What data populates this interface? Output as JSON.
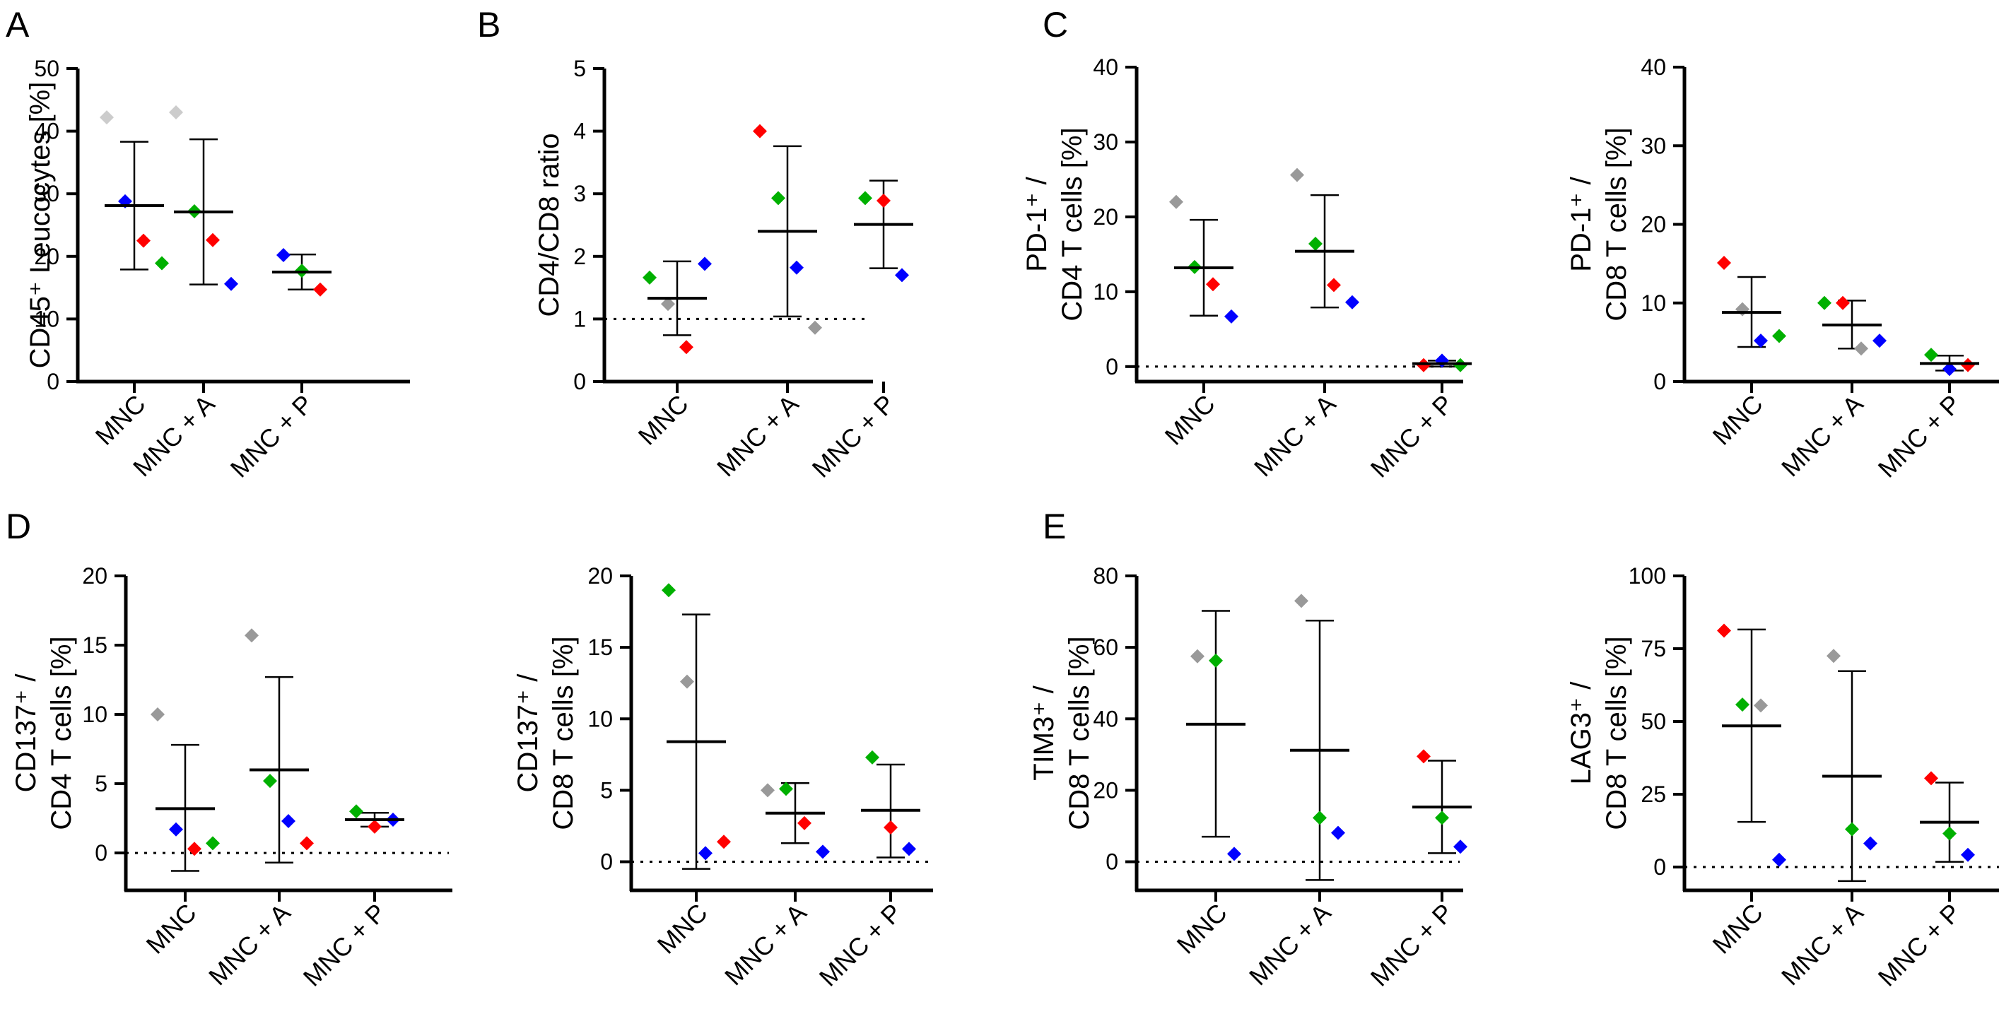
{
  "figure": {
    "panel_letters": [
      "A",
      "B",
      "C",
      "D",
      "E"
    ]
  },
  "colors": {
    "axis": "#000000",
    "gray": "#999999",
    "light_gray": "#cccccc",
    "blue": "#0000ff",
    "red": "#ff0000",
    "green": "#00b000"
  },
  "chart_data": [
    {
      "type": "scatter",
      "panel": "A",
      "ylabel": [
        "CD45⁺ Leucocytes [%]"
      ],
      "categories": [
        "MNC",
        "MNC + A",
        "MNC + P"
      ],
      "ylim": [
        0,
        50
      ],
      "yticks": [
        0,
        10,
        20,
        30,
        40,
        50
      ],
      "reference_line": null,
      "grid": false,
      "groups": [
        {
          "mean": 28.1,
          "sd_upper": 38.3,
          "sd_lower": 17.9,
          "points": [
            {
              "color": "light_gray",
              "value": 42.2
            },
            {
              "color": "blue",
              "value": 28.8
            },
            {
              "color": "red",
              "value": 22.5
            },
            {
              "color": "green",
              "value": 18.9
            }
          ]
        },
        {
          "mean": 27.1,
          "sd_upper": 38.7,
          "sd_lower": 15.5,
          "points": [
            {
              "color": "light_gray",
              "value": 43
            },
            {
              "color": "green",
              "value": 27.2
            },
            {
              "color": "red",
              "value": 22.6
            },
            {
              "color": "blue",
              "value": 15.6
            }
          ]
        },
        {
          "mean": 17.5,
          "sd_upper": 20.3,
          "sd_lower": 14.7,
          "points": [
            {
              "color": "blue",
              "value": 20.2
            },
            {
              "color": "green",
              "value": 17.7
            },
            {
              "color": "red",
              "value": 14.7
            }
          ]
        }
      ]
    },
    {
      "type": "scatter",
      "panel": "B",
      "ylabel": [
        "CD4/CD8 ratio"
      ],
      "categories": [
        "MNC",
        "MNC + A",
        "MNC + P"
      ],
      "ylim": [
        0,
        5
      ],
      "yticks": [
        0,
        1,
        2,
        3,
        4,
        5
      ],
      "reference_line": 1,
      "grid": false,
      "groups": [
        {
          "mean": 1.33,
          "sd_upper": 1.92,
          "sd_lower": 0.74,
          "points": [
            {
              "color": "green",
              "value": 1.66
            },
            {
              "color": "gray",
              "value": 1.24
            },
            {
              "color": "red",
              "value": 0.55
            },
            {
              "color": "blue",
              "value": 1.88
            }
          ]
        },
        {
          "mean": 2.4,
          "sd_upper": 3.76,
          "sd_lower": 1.04,
          "points": [
            {
              "color": "red",
              "value": 4.0
            },
            {
              "color": "green",
              "value": 2.93
            },
            {
              "color": "blue",
              "value": 1.82
            },
            {
              "color": "gray",
              "value": 0.86
            }
          ]
        },
        {
          "mean": 2.51,
          "sd_upper": 3.21,
          "sd_lower": 1.81,
          "points": [
            {
              "color": "green",
              "value": 2.93
            },
            {
              "color": "red",
              "value": 2.89
            },
            {
              "color": "blue",
              "value": 1.7
            }
          ]
        }
      ]
    },
    {
      "type": "scatter",
      "panel": "C",
      "ylabel": [
        "PD-1⁺ /",
        "CD4 T cells [%]"
      ],
      "categories": [
        "MNC",
        "MNC + A",
        "MNC + P"
      ],
      "ylim": [
        -2,
        40
      ],
      "yticks": [
        0,
        10,
        20,
        30,
        40
      ],
      "reference_line": 0,
      "grid": false,
      "groups": [
        {
          "mean": 13.2,
          "sd_upper": 19.6,
          "sd_lower": 6.8,
          "points": [
            {
              "color": "gray",
              "value": 22
            },
            {
              "color": "green",
              "value": 13.3
            },
            {
              "color": "red",
              "value": 11
            },
            {
              "color": "blue",
              "value": 6.7
            }
          ]
        },
        {
          "mean": 15.4,
          "sd_upper": 22.9,
          "sd_lower": 7.9,
          "points": [
            {
              "color": "gray",
              "value": 25.6
            },
            {
              "color": "green",
              "value": 16.4
            },
            {
              "color": "red",
              "value": 10.9
            },
            {
              "color": "blue",
              "value": 8.6
            }
          ]
        },
        {
          "mean": 0.4,
          "sd_upper": 0.8,
          "sd_lower": 0.0,
          "points": [
            {
              "color": "red",
              "value": 0.2
            },
            {
              "color": "blue",
              "value": 0.8
            },
            {
              "color": "green",
              "value": 0.2
            }
          ]
        }
      ]
    },
    {
      "type": "scatter",
      "panel": "",
      "ylabel": [
        "PD-1⁺ /",
        "CD8 T cells [%]"
      ],
      "categories": [
        "MNC",
        "MNC + A",
        "MNC + P"
      ],
      "ylim": [
        0,
        40
      ],
      "yticks": [
        0,
        10,
        20,
        30,
        40
      ],
      "reference_line": null,
      "grid": false,
      "groups": [
        {
          "mean": 8.8,
          "sd_upper": 13.3,
          "sd_lower": 4.4,
          "points": [
            {
              "color": "red",
              "value": 15.1
            },
            {
              "color": "gray",
              "value": 9.2
            },
            {
              "color": "blue",
              "value": 5.2
            },
            {
              "color": "green",
              "value": 5.8
            }
          ]
        },
        {
          "mean": 7.2,
          "sd_upper": 10.3,
          "sd_lower": 4.2,
          "points": [
            {
              "color": "green",
              "value": 10
            },
            {
              "color": "red",
              "value": 10
            },
            {
              "color": "gray",
              "value": 4.2
            },
            {
              "color": "blue",
              "value": 5.2
            }
          ]
        },
        {
          "mean": 2.3,
          "sd_upper": 3.3,
          "sd_lower": 1.4,
          "points": [
            {
              "color": "green",
              "value": 3.4
            },
            {
              "color": "blue",
              "value": 1.6
            },
            {
              "color": "red",
              "value": 2.1
            }
          ]
        }
      ]
    },
    {
      "type": "scatter",
      "panel": "D",
      "ylabel": [
        "CD137⁺ /",
        "CD4 T cells [%]"
      ],
      "categories": [
        "MNC",
        "MNC + A",
        "MNC + P"
      ],
      "ylim": [
        -2.7,
        20
      ],
      "yticks": [
        0,
        5,
        10,
        15,
        20
      ],
      "reference_line": 0,
      "grid": false,
      "groups": [
        {
          "mean": 3.2,
          "sd_upper": 7.8,
          "sd_lower": -1.3,
          "points": [
            {
              "color": "gray",
              "value": 10
            },
            {
              "color": "blue",
              "value": 1.7
            },
            {
              "color": "red",
              "value": 0.3
            },
            {
              "color": "green",
              "value": 0.7
            }
          ]
        },
        {
          "mean": 6.0,
          "sd_upper": 12.7,
          "sd_lower": -0.7,
          "points": [
            {
              "color": "gray",
              "value": 15.7
            },
            {
              "color": "green",
              "value": 5.2
            },
            {
              "color": "blue",
              "value": 2.3
            },
            {
              "color": "red",
              "value": 0.7
            }
          ]
        },
        {
          "mean": 2.4,
          "sd_upper": 2.9,
          "sd_lower": 1.9,
          "points": [
            {
              "color": "green",
              "value": 3
            },
            {
              "color": "red",
              "value": 1.9
            },
            {
              "color": "blue",
              "value": 2.4
            }
          ]
        }
      ]
    },
    {
      "type": "scatter",
      "panel": "",
      "ylabel": [
        "CD137⁺ /",
        "CD8 T cells [%]"
      ],
      "categories": [
        "MNC",
        "MNC + A",
        "MNC + P"
      ],
      "ylim": [
        -2,
        20
      ],
      "yticks": [
        0,
        5,
        10,
        15,
        20
      ],
      "reference_line": 0,
      "grid": false,
      "groups": [
        {
          "mean": 8.4,
          "sd_upper": 17.3,
          "sd_lower": -0.5,
          "points": [
            {
              "color": "green",
              "value": 19
            },
            {
              "color": "gray",
              "value": 12.6
            },
            {
              "color": "blue",
              "value": 0.6
            },
            {
              "color": "red",
              "value": 1.4
            }
          ]
        },
        {
          "mean": 3.4,
          "sd_upper": 5.5,
          "sd_lower": 1.3,
          "points": [
            {
              "color": "gray",
              "value": 5
            },
            {
              "color": "green",
              "value": 5.1
            },
            {
              "color": "red",
              "value": 2.7
            },
            {
              "color": "blue",
              "value": 0.7
            }
          ]
        },
        {
          "mean": 3.6,
          "sd_upper": 6.8,
          "sd_lower": 0.3,
          "points": [
            {
              "color": "green",
              "value": 7.3
            },
            {
              "color": "red",
              "value": 2.4
            },
            {
              "color": "blue",
              "value": 0.9
            }
          ]
        }
      ]
    },
    {
      "type": "scatter",
      "panel": "E",
      "ylabel": [
        "TIM3⁺ /",
        "CD8 T cells [%]"
      ],
      "categories": [
        "MNC",
        "MNC + A",
        "MNC + P"
      ],
      "ylim": [
        -8,
        80
      ],
      "yticks": [
        0,
        20,
        40,
        60,
        80
      ],
      "reference_line": 0,
      "grid": false,
      "groups": [
        {
          "mean": 38.5,
          "sd_upper": 70.2,
          "sd_lower": 7.0,
          "points": [
            {
              "color": "gray",
              "value": 57.5
            },
            {
              "color": "green",
              "value": 56.3
            },
            {
              "color": "blue",
              "value": 2.2
            }
          ]
        },
        {
          "mean": 31.2,
          "sd_upper": 67.5,
          "sd_lower": -5.1,
          "points": [
            {
              "color": "gray",
              "value": 73
            },
            {
              "color": "green",
              "value": 12.3
            },
            {
              "color": "blue",
              "value": 8.1
            }
          ]
        },
        {
          "mean": 15.3,
          "sd_upper": 28.3,
          "sd_lower": 2.4,
          "points": [
            {
              "color": "red",
              "value": 29.5
            },
            {
              "color": "green",
              "value": 12.3
            },
            {
              "color": "blue",
              "value": 4.2
            }
          ]
        }
      ]
    },
    {
      "type": "scatter",
      "panel": "",
      "ylabel": [
        "LAG3⁺ /",
        "CD8 T cells [%]"
      ],
      "categories": [
        "MNC",
        "MNC + A",
        "MNC + P"
      ],
      "ylim": [
        -8,
        100
      ],
      "yticks": [
        0,
        25,
        50,
        75,
        100
      ],
      "reference_line": 0,
      "grid": false,
      "groups": [
        {
          "mean": 48.5,
          "sd_upper": 81.6,
          "sd_lower": 15.5,
          "points": [
            {
              "color": "red",
              "value": 81.2
            },
            {
              "color": "green",
              "value": 55.8
            },
            {
              "color": "gray",
              "value": 55.5
            },
            {
              "color": "blue",
              "value": 2.5
            }
          ]
        },
        {
          "mean": 31.2,
          "sd_upper": 67.3,
          "sd_lower": -4.8,
          "points": [
            {
              "color": "gray",
              "value": 72.5
            },
            {
              "color": "green",
              "value": 13
            },
            {
              "color": "blue",
              "value": 8.1
            }
          ]
        },
        {
          "mean": 15.4,
          "sd_upper": 29.0,
          "sd_lower": 1.8,
          "points": [
            {
              "color": "red",
              "value": 30.5
            },
            {
              "color": "green",
              "value": 11.5
            },
            {
              "color": "blue",
              "value": 4.2
            }
          ]
        }
      ]
    }
  ]
}
